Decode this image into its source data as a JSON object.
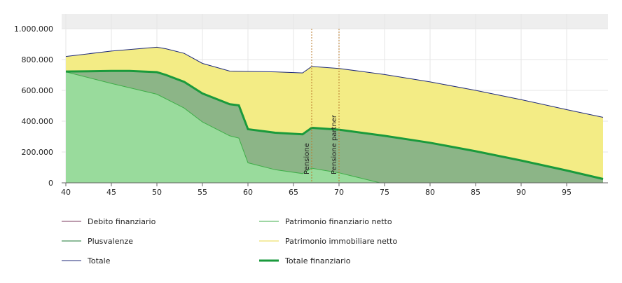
{
  "chart_data": {
    "type": "area",
    "xlim": [
      40,
      99
    ],
    "ylim": [
      0,
      1000000
    ],
    "x_ticks": [
      40,
      45,
      50,
      55,
      60,
      65,
      70,
      75,
      80,
      85,
      90,
      95
    ],
    "x_tick_labels": [
      "40",
      "45",
      "50",
      "55",
      "60",
      "65",
      "70",
      "75",
      "80",
      "85",
      "90",
      "95"
    ],
    "y_ticks": [
      0,
      200000,
      400000,
      600000,
      800000,
      1000000
    ],
    "y_tick_labels": [
      "0",
      "200.000",
      "400.000",
      "600.000",
      "800.000",
      "1.000.000"
    ],
    "grid": true,
    "legend_position": "bottom",
    "colors": {
      "debito": "#7b3a5e",
      "patrimonio_finanziario": "#3fae49",
      "plusvalenze": "#1d7a35",
      "immobiliare": "#e8d84a",
      "totale": "#1f2a7a",
      "totale_finanziario": "#1a9a3c",
      "fill_finanziario": "#99db9c",
      "fill_plusvalenze": "#8cb587",
      "fill_immobiliare": "#f3ec85",
      "header_band": "#eeeeee",
      "annotation_line": "#b87a2a"
    },
    "series": [
      {
        "key": "debito",
        "name": "Debito finanziario",
        "x": [
          40,
          99
        ],
        "values": [
          0,
          0
        ]
      },
      {
        "key": "patrimonio_finanziario",
        "name": "Patrimonio finanziario netto",
        "x": [
          40,
          45,
          50,
          53,
          55,
          58,
          59,
          60,
          63,
          66,
          67,
          70,
          74.5
        ],
        "values": [
          720000,
          645000,
          575000,
          485000,
          395000,
          305000,
          290000,
          130000,
          85000,
          60000,
          95000,
          65000,
          0
        ]
      },
      {
        "key": "plusvalenze",
        "name": "Plusvalenze",
        "x": [
          40,
          99
        ],
        "values": [
          0,
          0
        ]
      },
      {
        "key": "immobiliare",
        "name": "Patrimonio immobiliare netto",
        "x": [
          40,
          99
        ],
        "values": [
          0,
          0
        ]
      },
      {
        "key": "totale",
        "name": "Totale",
        "x": [
          40,
          45,
          50,
          51,
          53,
          55,
          58,
          60,
          63,
          66,
          67,
          70,
          75,
          80,
          85,
          90,
          95,
          99
        ],
        "values": [
          820000,
          855000,
          880000,
          870000,
          840000,
          775000,
          725000,
          723000,
          720000,
          713000,
          755000,
          742000,
          703000,
          655000,
          600000,
          540000,
          475000,
          425000
        ]
      },
      {
        "key": "totale_finanziario",
        "name": "Totale finanziario",
        "x": [
          40,
          45,
          47,
          50,
          51,
          53,
          55,
          58,
          59,
          60,
          63,
          66,
          67,
          70,
          75,
          80,
          85,
          90,
          95,
          99
        ],
        "values": [
          722000,
          726000,
          726000,
          718000,
          700000,
          655000,
          580000,
          510000,
          503000,
          348000,
          325000,
          315000,
          357000,
          345000,
          305000,
          260000,
          205000,
          145000,
          80000,
          25000
        ]
      }
    ],
    "annotations": [
      {
        "x": 67,
        "label": "Pensione"
      },
      {
        "x": 70,
        "label": "Pensione partner"
      }
    ]
  }
}
